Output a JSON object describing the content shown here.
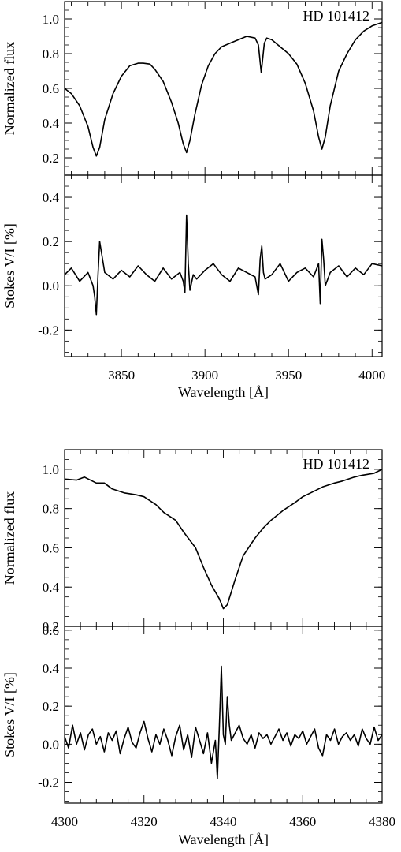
{
  "chart_data": [
    {
      "type": "line",
      "figure": "top",
      "xlabel": "Wavelength [Å]",
      "xlim": [
        3816,
        4006
      ],
      "xticks": [
        3850,
        3900,
        3950,
        4000
      ],
      "panels": [
        {
          "id": "flux",
          "ylabel": "Normalized flux",
          "label": "HD 101412",
          "ylim": [
            0.1,
            1.1
          ],
          "yticks": [
            0.2,
            0.4,
            0.6,
            0.8,
            1.0
          ],
          "ytick_labels": [
            "0.2",
            "0.4",
            "0.6",
            "0.8",
            "1.0"
          ],
          "series": [
            {
              "x": [
                3816,
                3820,
                3825,
                3830,
                3833,
                3835,
                3837,
                3840,
                3845,
                3850,
                3855,
                3860,
                3863,
                3867,
                3870,
                3875,
                3880,
                3884,
                3887,
                3889,
                3891,
                3894,
                3898,
                3902,
                3906,
                3910,
                3915,
                3920,
                3925,
                3930,
                3932,
                3933.7,
                3935.5,
                3937,
                3940,
                3945,
                3950,
                3955,
                3960,
                3965,
                3968,
                3970,
                3972,
                3975,
                3980,
                3985,
                3990,
                3995,
                4000,
                4006
              ],
              "y": [
                0.6,
                0.57,
                0.5,
                0.38,
                0.26,
                0.21,
                0.26,
                0.42,
                0.57,
                0.67,
                0.73,
                0.745,
                0.745,
                0.74,
                0.71,
                0.64,
                0.52,
                0.4,
                0.28,
                0.23,
                0.3,
                0.45,
                0.62,
                0.73,
                0.8,
                0.84,
                0.86,
                0.88,
                0.9,
                0.89,
                0.85,
                0.69,
                0.86,
                0.89,
                0.88,
                0.84,
                0.8,
                0.74,
                0.63,
                0.47,
                0.32,
                0.25,
                0.32,
                0.5,
                0.7,
                0.8,
                0.88,
                0.93,
                0.96,
                0.98
              ]
            }
          ]
        },
        {
          "id": "stokes",
          "ylabel": "Stokes V/I [%]",
          "ylim": [
            -0.32,
            0.5
          ],
          "yticks": [
            -0.2,
            0.0,
            0.2,
            0.4
          ],
          "ytick_labels": [
            "-0.2",
            "0.0",
            "0.2",
            "0.4"
          ],
          "series": [
            {
              "x": [
                3816,
                3820,
                3825,
                3830,
                3833,
                3834,
                3835,
                3836,
                3837,
                3840,
                3845,
                3850,
                3855,
                3860,
                3865,
                3870,
                3875,
                3880,
                3885,
                3887,
                3888,
                3889,
                3890,
                3891,
                3893,
                3895,
                3900,
                3905,
                3910,
                3915,
                3920,
                3925,
                3930,
                3932,
                3933,
                3934,
                3935,
                3936,
                3940,
                3945,
                3950,
                3955,
                3960,
                3965,
                3968,
                3969,
                3970,
                3971,
                3972,
                3975,
                3980,
                3985,
                3990,
                3995,
                4000,
                4006
              ],
              "y": [
                0.05,
                0.08,
                0.02,
                0.06,
                0.0,
                -0.05,
                -0.13,
                0.05,
                0.2,
                0.06,
                0.03,
                0.07,
                0.04,
                0.09,
                0.05,
                0.02,
                0.08,
                0.03,
                0.06,
                0.02,
                -0.03,
                0.32,
                0.1,
                -0.02,
                0.05,
                0.03,
                0.07,
                0.1,
                0.05,
                0.02,
                0.08,
                0.06,
                0.04,
                -0.04,
                0.12,
                0.18,
                0.06,
                0.03,
                0.05,
                0.1,
                0.02,
                0.06,
                0.08,
                0.04,
                0.1,
                -0.08,
                0.21,
                0.12,
                0.0,
                0.06,
                0.09,
                0.04,
                0.08,
                0.05,
                0.1,
                0.09
              ]
            }
          ]
        }
      ]
    },
    {
      "type": "line",
      "figure": "bottom",
      "xlabel": "Wavelength [Å]",
      "xlim": [
        4300,
        4380
      ],
      "xticks": [
        4300,
        4320,
        4340,
        4360,
        4380
      ],
      "panels": [
        {
          "id": "flux",
          "ylabel": "Normalized flux",
          "label": "HD 101412",
          "ylim": [
            0.2,
            1.1
          ],
          "yticks": [
            0.2,
            0.4,
            0.6,
            0.8,
            1.0
          ],
          "ytick_labels": [
            "0.2",
            "0.4",
            "0.6",
            "0.8",
            "1.0"
          ],
          "series": [
            {
              "x": [
                4300,
                4303,
                4305,
                4308,
                4310,
                4312,
                4315,
                4318,
                4320,
                4323,
                4325,
                4328,
                4330,
                4333,
                4335,
                4337,
                4339,
                4340,
                4341,
                4343,
                4345,
                4348,
                4350,
                4352,
                4355,
                4358,
                4360,
                4363,
                4365,
                4368,
                4370,
                4373,
                4375,
                4378,
                4380
              ],
              "y": [
                0.95,
                0.945,
                0.96,
                0.93,
                0.93,
                0.9,
                0.88,
                0.87,
                0.86,
                0.82,
                0.78,
                0.74,
                0.68,
                0.6,
                0.5,
                0.41,
                0.34,
                0.29,
                0.31,
                0.44,
                0.56,
                0.65,
                0.7,
                0.74,
                0.79,
                0.83,
                0.86,
                0.89,
                0.91,
                0.93,
                0.94,
                0.96,
                0.97,
                0.98,
                1.0
              ]
            }
          ]
        },
        {
          "id": "stokes",
          "ylabel": "Stokes V/I [%]",
          "ylim": [
            -0.31,
            0.62
          ],
          "yticks": [
            -0.2,
            0.0,
            0.2,
            0.4,
            0.6
          ],
          "ytick_labels": [
            "-0.2",
            "0.0",
            "0.2",
            "0.4",
            "0.6"
          ],
          "series": [
            {
              "x": [
                4300,
                4301,
                4302,
                4303,
                4304,
                4305,
                4306,
                4307,
                4308,
                4309,
                4310,
                4311,
                4312,
                4313,
                4314,
                4315,
                4316,
                4317,
                4318,
                4319,
                4320,
                4321,
                4322,
                4323,
                4324,
                4325,
                4326,
                4327,
                4328,
                4329,
                4330,
                4331,
                4332,
                4333,
                4334,
                4335,
                4336,
                4337,
                4338,
                4338.5,
                4339,
                4339.5,
                4340,
                4340.5,
                4341,
                4341.5,
                4342,
                4343,
                4344,
                4345,
                4346,
                4347,
                4348,
                4349,
                4350,
                4351,
                4352,
                4353,
                4354,
                4355,
                4356,
                4357,
                4358,
                4359,
                4360,
                4361,
                4362,
                4363,
                4364,
                4365,
                4366,
                4367,
                4368,
                4369,
                4370,
                4371,
                4372,
                4373,
                4374,
                4375,
                4376,
                4377,
                4378,
                4379,
                4380
              ],
              "y": [
                0.04,
                -0.02,
                0.1,
                0.0,
                0.06,
                -0.03,
                0.05,
                0.08,
                0.0,
                0.04,
                -0.04,
                0.06,
                0.02,
                0.07,
                -0.05,
                0.03,
                0.09,
                0.01,
                -0.02,
                0.06,
                0.12,
                0.03,
                -0.04,
                0.05,
                0.0,
                0.08,
                0.02,
                -0.06,
                0.04,
                0.1,
                -0.03,
                0.05,
                -0.07,
                0.09,
                0.02,
                -0.05,
                0.06,
                -0.1,
                0.02,
                -0.18,
                0.1,
                0.41,
                0.05,
                0.0,
                0.25,
                0.1,
                0.02,
                0.06,
                0.1,
                0.03,
                0.0,
                0.05,
                -0.02,
                0.06,
                0.03,
                0.05,
                0.0,
                0.04,
                0.08,
                0.02,
                0.06,
                -0.01,
                0.05,
                0.03,
                0.07,
                0.0,
                0.04,
                0.08,
                -0.02,
                -0.06,
                0.05,
                0.02,
                0.08,
                0.0,
                0.04,
                0.06,
                0.02,
                0.05,
                -0.01,
                0.08,
                0.03,
                0.0,
                0.09,
                0.02,
                0.05
              ]
            }
          ]
        }
      ]
    }
  ]
}
